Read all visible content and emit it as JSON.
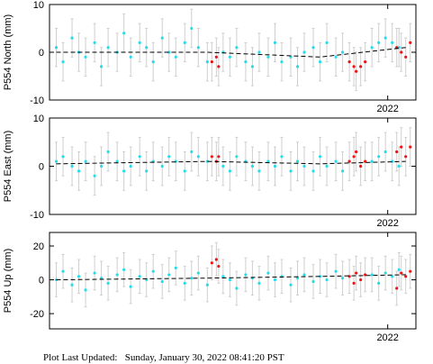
{
  "chart_data": [
    {
      "type": "scatter",
      "ylabel": "P554 North (mm)",
      "xlim": [
        2020.5,
        2022.125
      ],
      "xticks": [
        2022
      ],
      "ylim": [
        -10,
        10
      ],
      "yticks": [
        -10,
        0,
        10
      ],
      "series": [
        {
          "color": "#22ddee",
          "error": 4,
          "x": [
            2020.53,
            2020.56,
            2020.6,
            2020.63,
            2020.66,
            2020.7,
            2020.73,
            2020.76,
            2020.8,
            2020.83,
            2020.86,
            2020.9,
            2020.93,
            2020.96,
            2021.0,
            2021.03,
            2021.06,
            2021.1,
            2021.13,
            2021.16,
            2021.2,
            2021.27,
            2021.3,
            2021.33,
            2021.37,
            2021.4,
            2021.43,
            2021.47,
            2021.5,
            2021.53,
            2021.57,
            2021.6,
            2021.63,
            2021.67,
            2021.7,
            2021.73,
            2021.77,
            2021.8,
            2021.93,
            2021.96,
            2021.99,
            2022.02,
            2022.05
          ],
          "values": [
            1,
            -2,
            3,
            0,
            -1,
            2,
            -3,
            1,
            0,
            4,
            -1,
            2,
            1,
            -2,
            3,
            0,
            -1,
            2,
            5,
            1,
            -2,
            0,
            -1,
            1,
            -2,
            -3,
            0,
            -1,
            2,
            -2,
            -1,
            -3,
            0,
            1,
            -2,
            2,
            -1,
            0,
            1,
            2,
            3,
            2,
            1
          ]
        },
        {
          "color": "#ee1111",
          "error": 4,
          "x": [
            2021.22,
            2021.24,
            2021.25,
            2021.83,
            2021.85,
            2021.86,
            2021.88,
            2021.9,
            2022.04,
            2022.06,
            2022.08,
            2022.1
          ],
          "values": [
            -2,
            -1,
            -3,
            -2,
            -3,
            -4,
            -3,
            -2,
            1,
            0,
            -1,
            2
          ]
        },
        {
          "color": "#000000",
          "dashed": true,
          "x": [
            2020.53,
            2021.2,
            2021.7,
            2022.08
          ],
          "values": [
            0,
            0,
            -1,
            1
          ]
        }
      ]
    },
    {
      "type": "scatter",
      "ylabel": "P554 East (mm)",
      "xlim": [
        2020.5,
        2022.125
      ],
      "xticks": [
        2022
      ],
      "ylim": [
        -10,
        10
      ],
      "yticks": [
        -10,
        0,
        10
      ],
      "series": [
        {
          "color": "#22ddee",
          "error": 4,
          "x": [
            2020.53,
            2020.56,
            2020.6,
            2020.63,
            2020.66,
            2020.7,
            2020.73,
            2020.76,
            2020.8,
            2020.83,
            2020.86,
            2020.9,
            2020.93,
            2020.96,
            2021.0,
            2021.03,
            2021.06,
            2021.1,
            2021.13,
            2021.16,
            2021.2,
            2021.27,
            2021.3,
            2021.33,
            2021.37,
            2021.4,
            2021.43,
            2021.47,
            2021.5,
            2021.53,
            2021.57,
            2021.6,
            2021.63,
            2021.67,
            2021.7,
            2021.73,
            2021.77,
            2021.8,
            2021.93,
            2021.96,
            2021.99,
            2022.02,
            2022.05
          ],
          "values": [
            1,
            2,
            0,
            -1,
            1,
            -2,
            0,
            3,
            1,
            -1,
            0,
            2,
            -1,
            1,
            0,
            2,
            1,
            -1,
            3,
            2,
            1,
            0,
            -1,
            2,
            1,
            0,
            -1,
            1,
            0,
            2,
            -1,
            1,
            0,
            -1,
            2,
            0,
            1,
            -1,
            1,
            2,
            3,
            1,
            0
          ]
        },
        {
          "color": "#ee1111",
          "error": 4,
          "x": [
            2021.22,
            2021.24,
            2021.25,
            2021.83,
            2021.85,
            2021.86,
            2021.88,
            2021.9,
            2022.04,
            2022.06,
            2022.08,
            2022.1
          ],
          "values": [
            2,
            1,
            2,
            1,
            2,
            3,
            0,
            1,
            3,
            4,
            2,
            4
          ]
        },
        {
          "color": "#000000",
          "dashed": true,
          "x": [
            2020.53,
            2021.2,
            2021.7,
            2022.08
          ],
          "values": [
            0.5,
            1,
            0.5,
            1
          ]
        }
      ]
    },
    {
      "type": "scatter",
      "ylabel": "P554 Up (mm)",
      "xlim": [
        2020.5,
        2022.125
      ],
      "xticks": [
        2022
      ],
      "ylim": [
        -29,
        28
      ],
      "yticks": [
        -20,
        0,
        20
      ],
      "series": [
        {
          "color": "#22ddee",
          "error": 10,
          "x": [
            2020.53,
            2020.56,
            2020.6,
            2020.63,
            2020.66,
            2020.7,
            2020.73,
            2020.76,
            2020.8,
            2020.83,
            2020.86,
            2020.9,
            2020.93,
            2020.96,
            2021.0,
            2021.03,
            2021.06,
            2021.1,
            2021.13,
            2021.16,
            2021.2,
            2021.27,
            2021.3,
            2021.33,
            2021.37,
            2021.4,
            2021.43,
            2021.47,
            2021.5,
            2021.53,
            2021.57,
            2021.6,
            2021.63,
            2021.67,
            2021.7,
            2021.73,
            2021.77,
            2021.8,
            2021.93,
            2021.96,
            2021.99,
            2022.02,
            2022.05
          ],
          "values": [
            0,
            5,
            -3,
            2,
            -6,
            4,
            1,
            -2,
            3,
            6,
            -4,
            2,
            0,
            5,
            -1,
            3,
            7,
            -2,
            1,
            4,
            -3,
            2,
            0,
            -5,
            3,
            1,
            -2,
            4,
            0,
            2,
            -3,
            1,
            3,
            -1,
            2,
            0,
            5,
            1,
            3,
            -2,
            4,
            2,
            6
          ]
        },
        {
          "color": "#ee1111",
          "error": 10,
          "x": [
            2021.22,
            2021.24,
            2021.25,
            2021.83,
            2021.85,
            2021.86,
            2021.88,
            2021.9,
            2022.04,
            2022.06,
            2022.08,
            2022.1
          ],
          "values": [
            10,
            12,
            8,
            2,
            -2,
            4,
            0,
            3,
            -5,
            4,
            2,
            5
          ]
        },
        {
          "color": "#000000",
          "dashed": true,
          "x": [
            2020.53,
            2021.2,
            2021.7,
            2022.08
          ],
          "values": [
            0,
            1,
            2,
            3
          ]
        }
      ]
    }
  ],
  "footer": "Plot Last Updated:   Sunday, January 30, 2022 08:41:20 PST"
}
